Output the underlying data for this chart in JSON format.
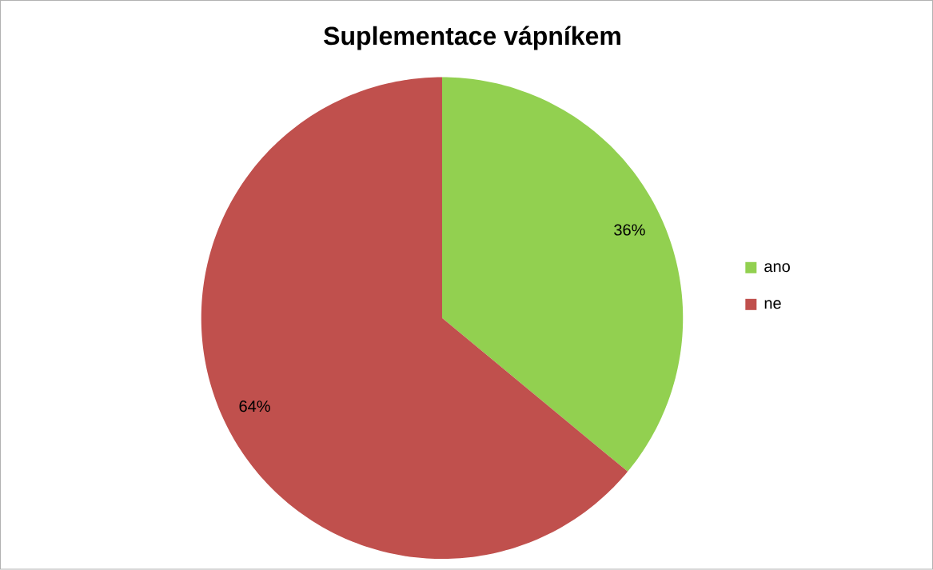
{
  "chart_data": {
    "type": "pie",
    "title": "Suplementace vápníkem",
    "categories": [
      "ano",
      "ne"
    ],
    "values": [
      36,
      64
    ],
    "colors": [
      "#92d050",
      "#c0504d"
    ],
    "value_labels": [
      "36%",
      "64%"
    ],
    "legend": "right"
  }
}
